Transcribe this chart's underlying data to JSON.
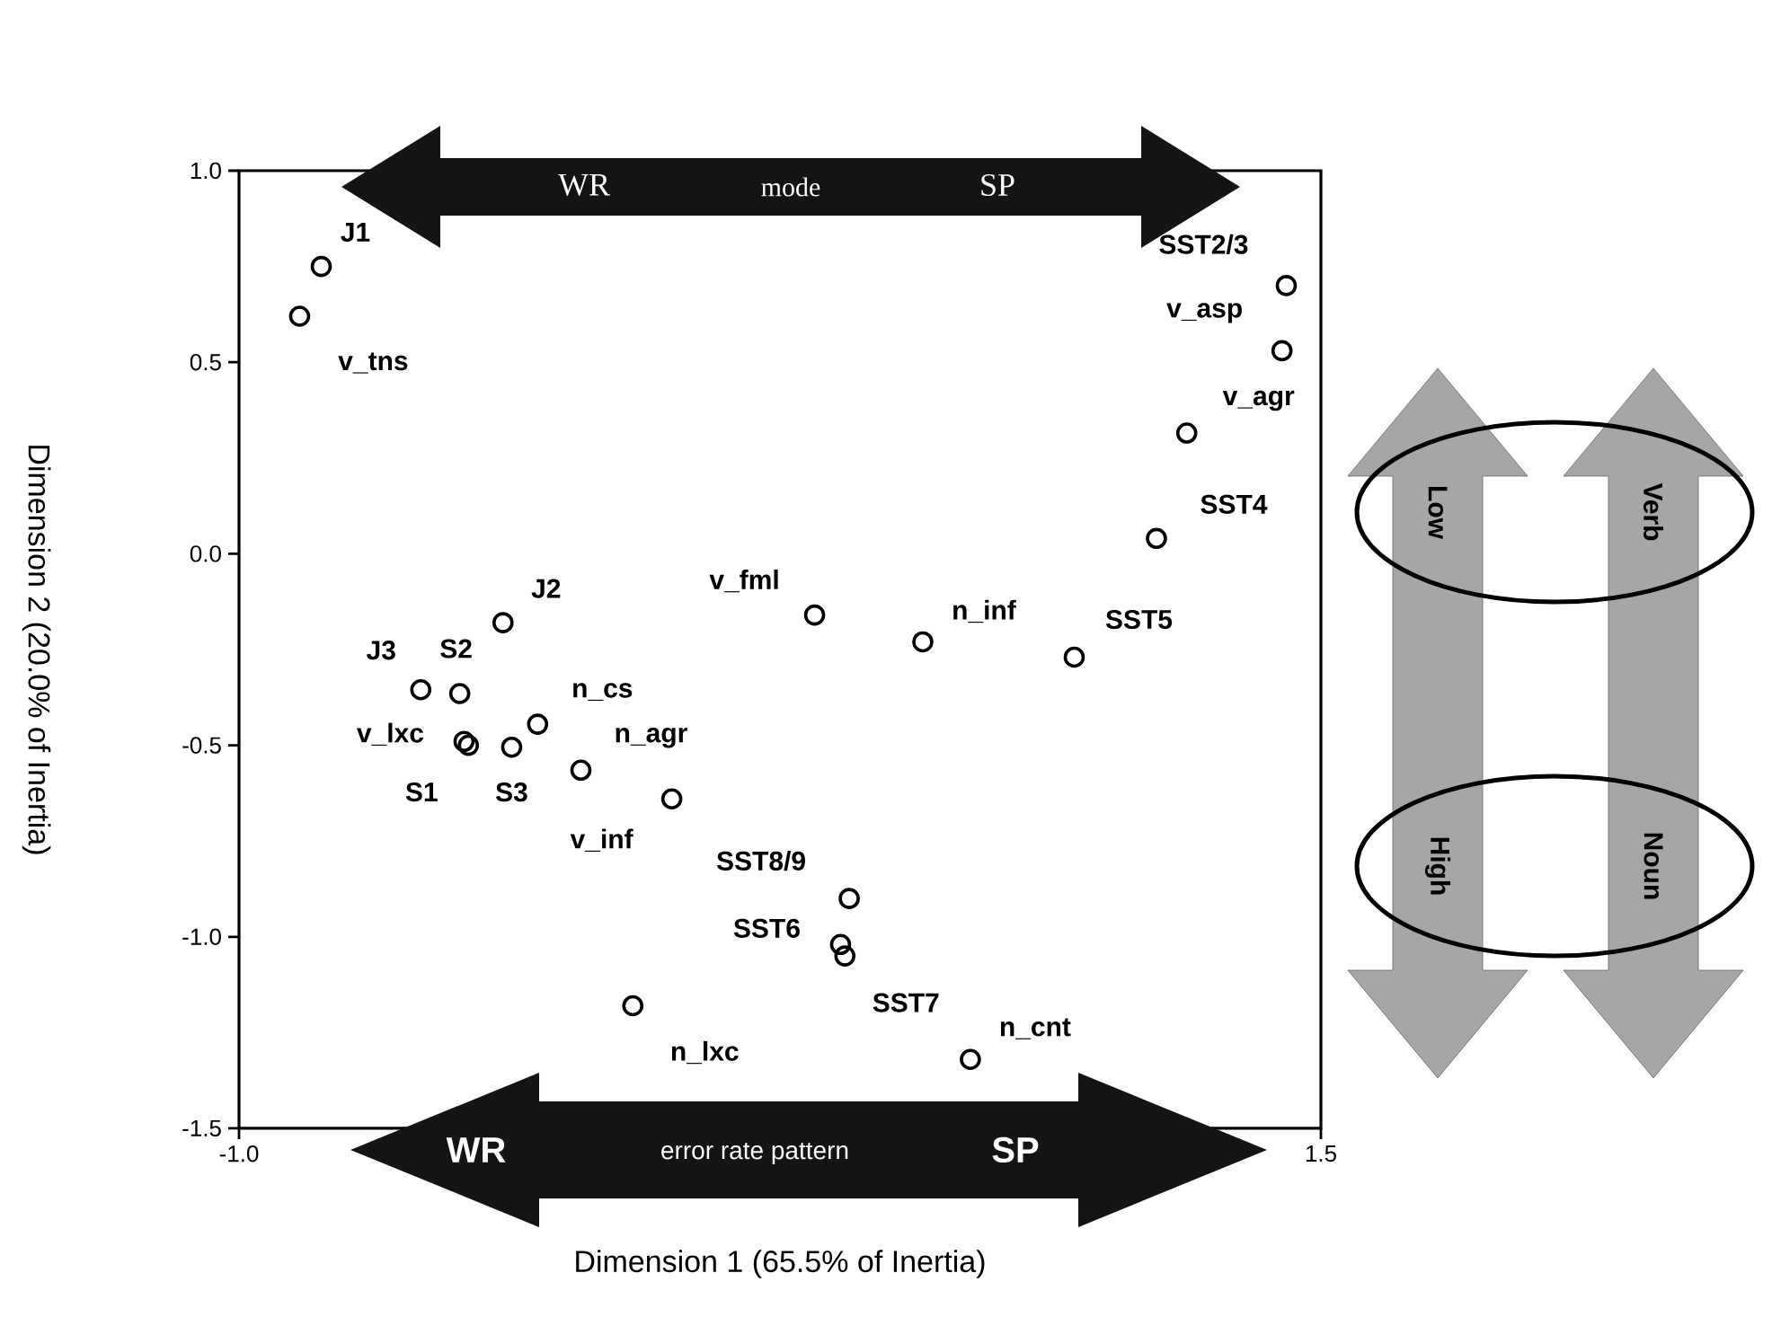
{
  "chart_data": {
    "type": "scatter",
    "marker": "circle",
    "color": "#000000",
    "x": [
      -0.81,
      -0.86,
      -0.39,
      -0.58,
      -0.49,
      -0.31,
      -0.47,
      -0.37,
      -0.21,
      0.0,
      -0.09,
      0.33,
      0.58,
      0.93,
      0.41,
      0.39,
      0.4,
      0.69,
      1.42,
      1.41,
      1.19,
      1.12,
      -0.48
    ],
    "values": [
      0.75,
      0.62,
      -0.18,
      -0.355,
      -0.365,
      -0.445,
      -0.5,
      -0.505,
      -0.565,
      -0.64,
      -1.18,
      -0.16,
      -0.23,
      -0.27,
      -0.9,
      -1.02,
      -1.05,
      -1.32,
      0.7,
      0.53,
      0.315,
      0.04,
      -0.49
    ],
    "xlabel": "Dimension 1 (65.5% of Inertia)",
    "ylabel": "Dimension 2 (20.0% of Inertia)",
    "xlim": [
      -1.0,
      1.5
    ],
    "ylim": [
      -1.5,
      1.0
    ],
    "xticks": [
      {
        "value": -1.0,
        "label": "-1.0"
      },
      {
        "value": 1.5,
        "label": "1.5"
      }
    ],
    "yticks": [
      {
        "value": -1.5,
        "label": "-1.5"
      },
      {
        "value": -1.0,
        "label": "-1.0"
      },
      {
        "value": -0.5,
        "label": "-0.5"
      },
      {
        "value": 0.0,
        "label": "0.0"
      },
      {
        "value": 0.5,
        "label": "0.5"
      },
      {
        "value": 1.0,
        "label": "1.0"
      }
    ],
    "annotations": [
      {
        "text": "J1",
        "x": -0.81,
        "y": 0.75
      },
      {
        "text": "v_tns",
        "x": -0.86,
        "y": 0.62
      },
      {
        "text": "J2",
        "x": -0.39,
        "y": -0.18
      },
      {
        "text": "J3",
        "x": -0.58,
        "y": -0.355
      },
      {
        "text": "S2",
        "x": -0.49,
        "y": -0.365
      },
      {
        "text": "n_cs",
        "x": -0.31,
        "y": -0.445
      },
      {
        "text": "v_lxc",
        "x": -0.48,
        "y": -0.49
      },
      {
        "text": "n_agr",
        "x": -0.21,
        "y": -0.565
      },
      {
        "text": "S1",
        "x": -0.47,
        "y": -0.5
      },
      {
        "text": "S3",
        "x": -0.37,
        "y": -0.505
      },
      {
        "text": "v_inf",
        "x": 0.0,
        "y": -0.64
      },
      {
        "text": "SST8/9",
        "x": 0.41,
        "y": -0.9
      },
      {
        "text": "SST6",
        "x": 0.39,
        "y": -1.02
      },
      {
        "text": "SST7",
        "x": 0.4,
        "y": -1.05
      },
      {
        "text": "n_cnt",
        "x": 0.69,
        "y": -1.32
      },
      {
        "text": "n_lxc",
        "x": -0.09,
        "y": -1.18
      },
      {
        "text": "v_fml",
        "x": 0.33,
        "y": -0.16
      },
      {
        "text": "n_inf",
        "x": 0.58,
        "y": -0.23
      },
      {
        "text": "SST5",
        "x": 0.93,
        "y": -0.27
      },
      {
        "text": "SST2/3",
        "x": 1.42,
        "y": 0.7
      },
      {
        "text": "v_asp",
        "x": 1.41,
        "y": 0.53
      },
      {
        "text": "v_agr",
        "x": 1.19,
        "y": 0.315
      },
      {
        "text": "SST4",
        "x": 1.12,
        "y": 0.04
      },
      "WR",
      "mode",
      "SP",
      "WR",
      "error rate pattern",
      "SP",
      "Low",
      "Verb",
      "High",
      "Noun"
    ]
  }
}
